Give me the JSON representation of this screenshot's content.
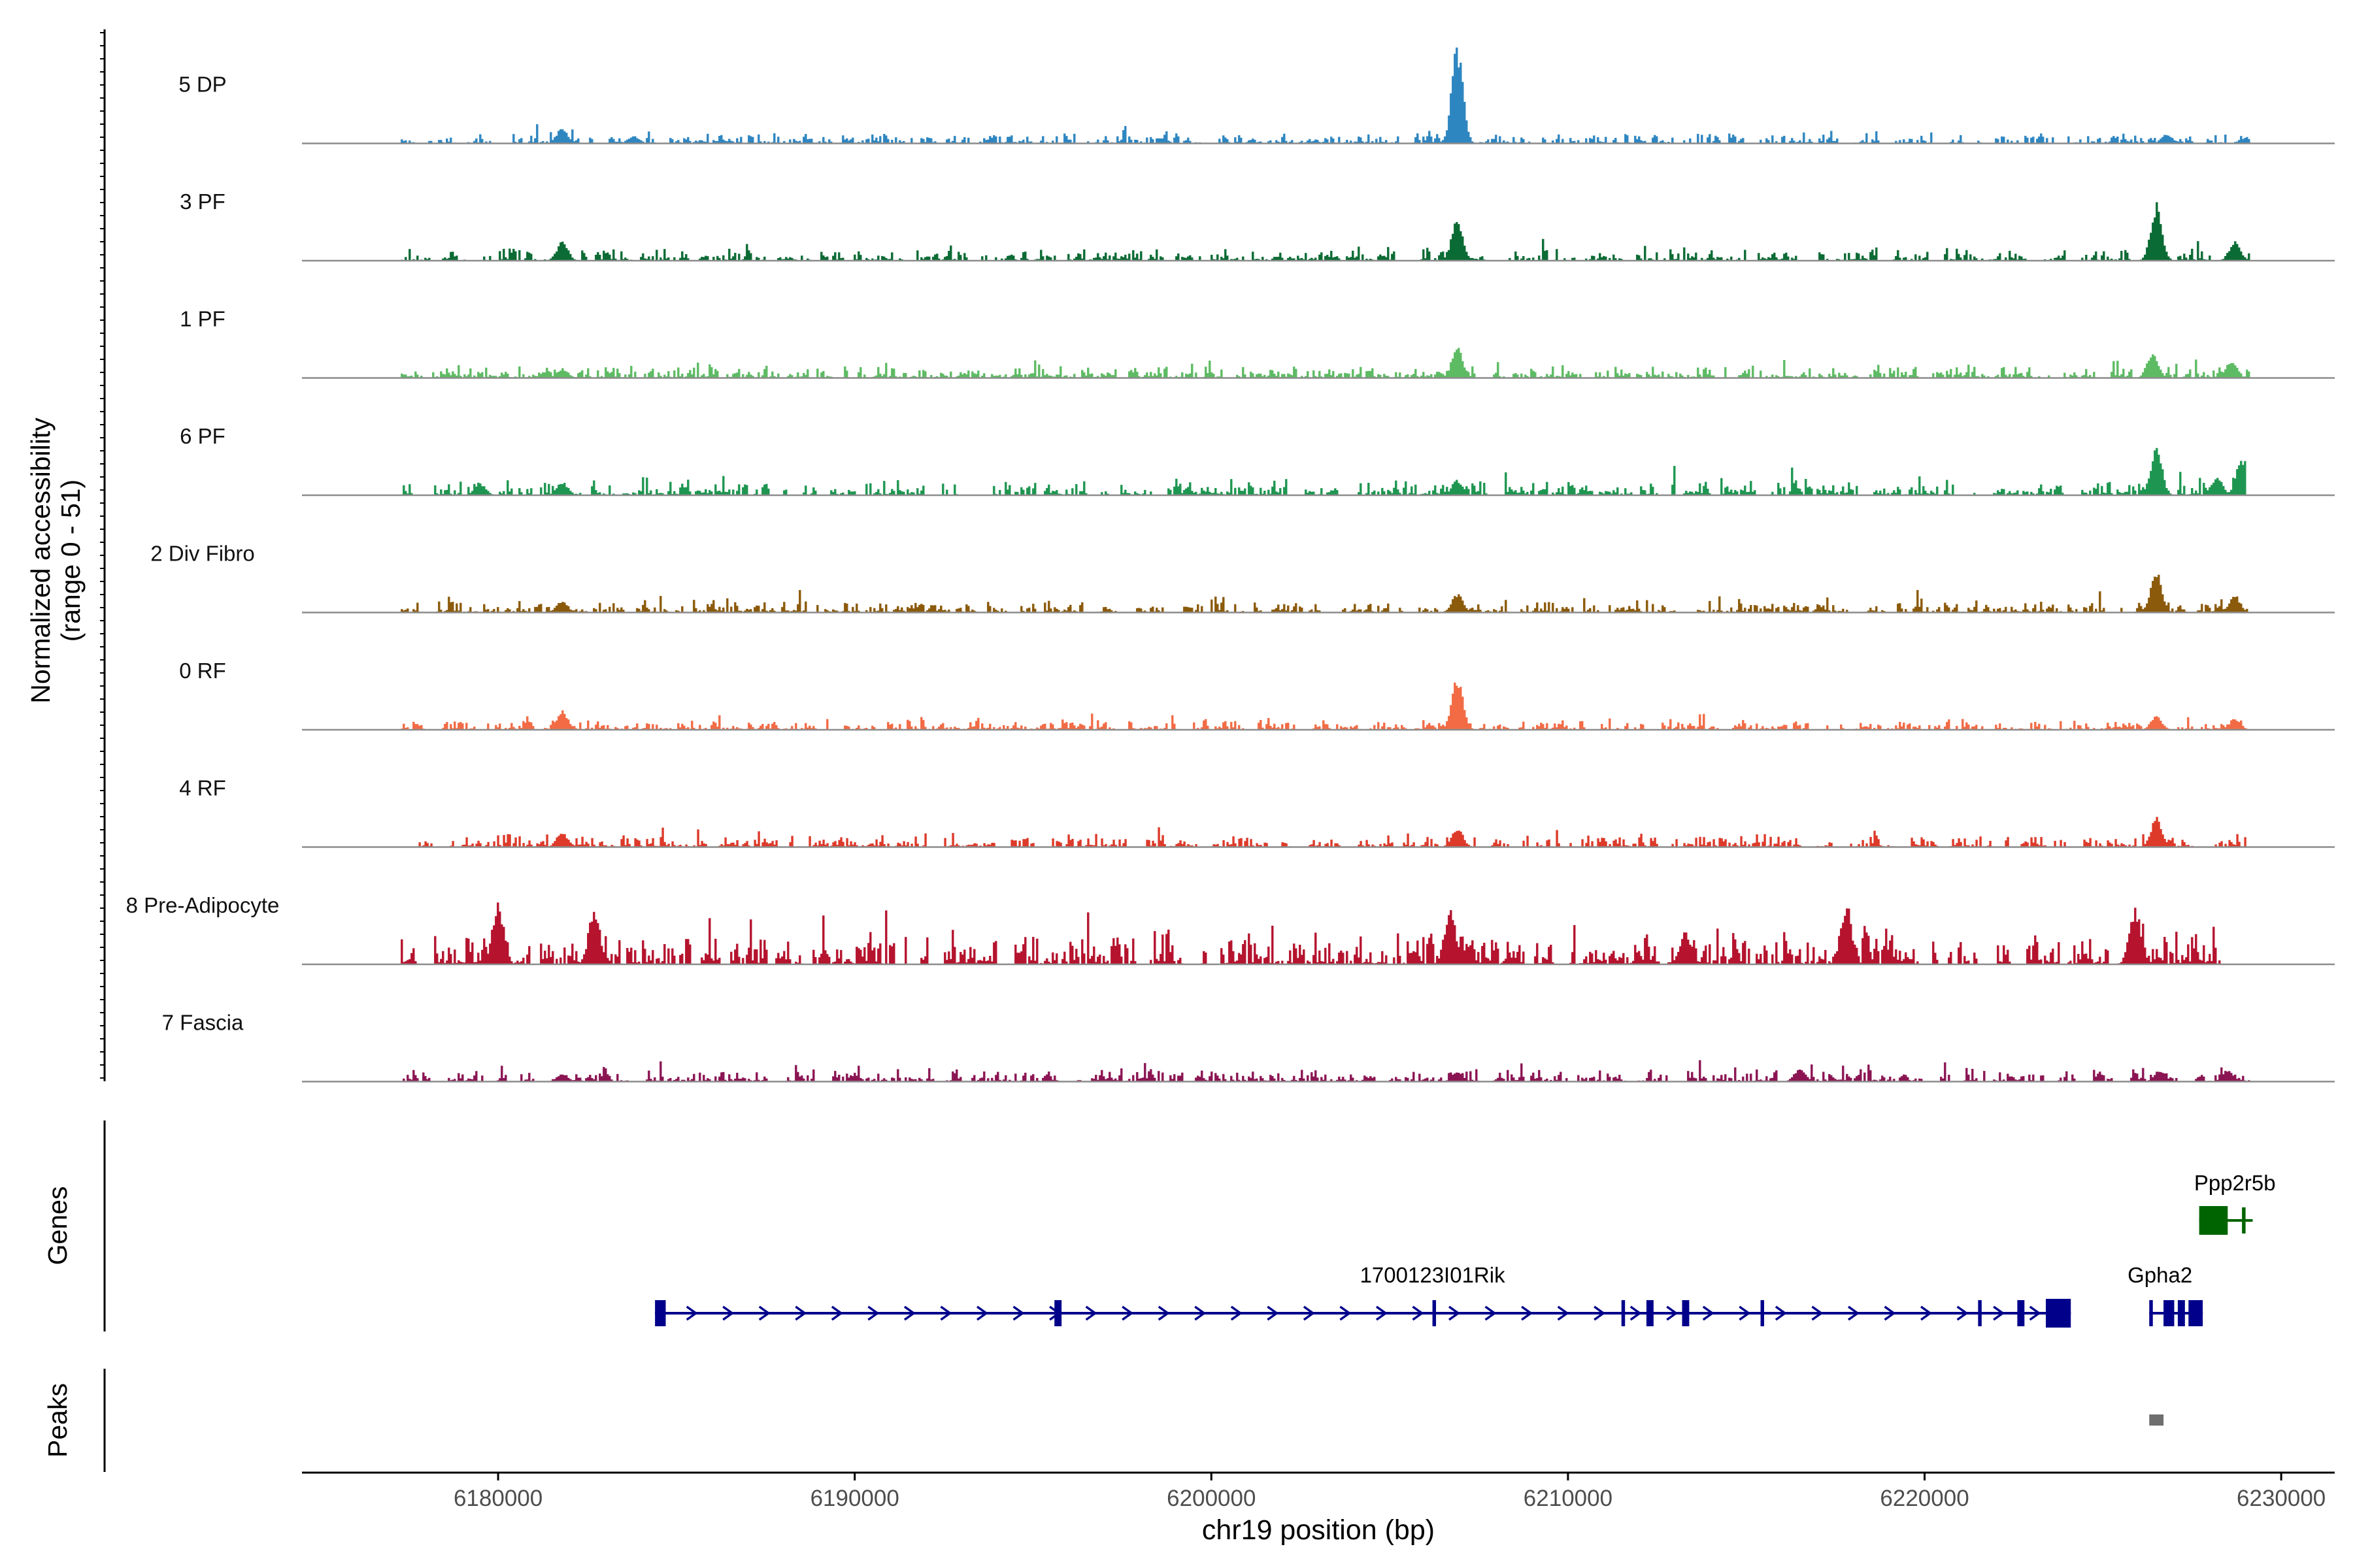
{
  "chart_data": {
    "type": "area",
    "plot_kind": "genome coverage tracks",
    "y_axis_label_line1": "Normalized accessibility",
    "y_axis_label_line2": "(range 0 - 51)",
    "y_range": [
      0,
      51
    ],
    "x_axis_label": "chr19 position (bp)",
    "x_range": [
      6174500,
      6231500
    ],
    "x_ticks": [
      6180000,
      6190000,
      6200000,
      6210000,
      6220000,
      6230000
    ],
    "x_tick_labels": [
      "6180000",
      "6190000",
      "6200000",
      "6210000",
      "6220000",
      "6230000"
    ],
    "tracks": [
      {
        "label": "5 DP",
        "color": "#2e86c1",
        "start": 6177300,
        "end": 6229100,
        "base": 2.5,
        "peaks": [
          [
            6181800,
            8
          ],
          [
            6183800,
            4
          ],
          [
            6206900,
            51
          ],
          [
            6226800,
            5
          ],
          [
            6229000,
            3
          ]
        ]
      },
      {
        "label": "3 PF",
        "color": "#0b6b34",
        "start": 6177300,
        "end": 6229100,
        "base": 3,
        "peaks": [
          [
            6181800,
            10
          ],
          [
            6206900,
            22
          ],
          [
            6226500,
            30
          ],
          [
            6228700,
            10
          ]
        ]
      },
      {
        "label": "1 PF",
        "color": "#5dbb63",
        "start": 6177300,
        "end": 6229100,
        "base": 3,
        "peaks": [
          [
            6181800,
            5
          ],
          [
            6206900,
            16
          ],
          [
            6226400,
            14
          ],
          [
            6228600,
            9
          ]
        ]
      },
      {
        "label": "6 PF",
        "color": "#1e9651",
        "start": 6177300,
        "end": 6229000,
        "base": 4,
        "peaks": [
          [
            6179500,
            6
          ],
          [
            6181800,
            7
          ],
          [
            6206900,
            8
          ],
          [
            6226500,
            26
          ],
          [
            6228200,
            10
          ],
          [
            6228900,
            20
          ]
        ]
      },
      {
        "label": "2 Div Fibro",
        "color": "#8b5a0a",
        "start": 6177300,
        "end": 6229100,
        "base": 3,
        "peaks": [
          [
            6181800,
            6
          ],
          [
            6206900,
            10
          ],
          [
            6226500,
            22
          ],
          [
            6228700,
            9
          ]
        ]
      },
      {
        "label": "0 RF",
        "color": "#f26b45",
        "start": 6177300,
        "end": 6229100,
        "base": 2.5,
        "peaks": [
          [
            6181800,
            10
          ],
          [
            6206900,
            28
          ],
          [
            6226500,
            7
          ],
          [
            6228700,
            6
          ]
        ]
      },
      {
        "label": "4 RF",
        "color": "#dd3a2a",
        "start": 6177800,
        "end": 6229000,
        "base": 3,
        "peaks": [
          [
            6181800,
            8
          ],
          [
            6206900,
            10
          ],
          [
            6226500,
            16
          ]
        ]
      },
      {
        "label": "8 Pre-Adipocyte",
        "color": "#b5132e",
        "start": 6177300,
        "end": 6228300,
        "base": 8,
        "peaks": [
          [
            6180000,
            32
          ],
          [
            6182700,
            30
          ],
          [
            6206700,
            30
          ],
          [
            6213300,
            18
          ],
          [
            6217800,
            32
          ],
          [
            6225900,
            30
          ]
        ]
      },
      {
        "label": "7 Fascia",
        "color": "#8b1553",
        "start": 6177300,
        "end": 6229100,
        "base": 3,
        "peaks": [
          [
            6181800,
            4
          ],
          [
            6206900,
            5
          ],
          [
            6216500,
            7
          ],
          [
            6226600,
            6
          ],
          [
            6228500,
            6
          ]
        ]
      }
    ],
    "genes_label": "Genes",
    "genes": [
      {
        "name": "1700123I01Rik",
        "strand": "+",
        "start": 6184400,
        "end": 6224100,
        "color": "#00008b",
        "exons": [
          [
            6184400,
            6184700
          ],
          [
            6195600,
            6195800
          ],
          [
            6206200,
            6206300
          ],
          [
            6211500,
            6211600
          ],
          [
            6212200,
            6212400
          ],
          [
            6213200,
            6213400
          ],
          [
            6215400,
            6215500
          ],
          [
            6221500,
            6221600
          ],
          [
            6222600,
            6222800
          ],
          [
            6223400,
            6224100
          ]
        ]
      },
      {
        "name": "Gpha2",
        "strand": "+",
        "start": 6226300,
        "end": 6227800,
        "color": "#00008b",
        "exons": [
          [
            6226300,
            6226400
          ],
          [
            6226700,
            6227000
          ],
          [
            6227100,
            6227300
          ],
          [
            6227400,
            6227800
          ]
        ]
      },
      {
        "name": "Ppp2r5b",
        "strand": "-",
        "start": 6227700,
        "end": 6229200,
        "color": "#006400",
        "exons": [
          [
            6227700,
            6228500
          ],
          [
            6228900,
            6229000
          ]
        ]
      }
    ],
    "peaks_label": "Peaks",
    "peak_regions": [
      {
        "start": 6226300,
        "end": 6226700,
        "color": "#6e6e6e"
      }
    ]
  }
}
